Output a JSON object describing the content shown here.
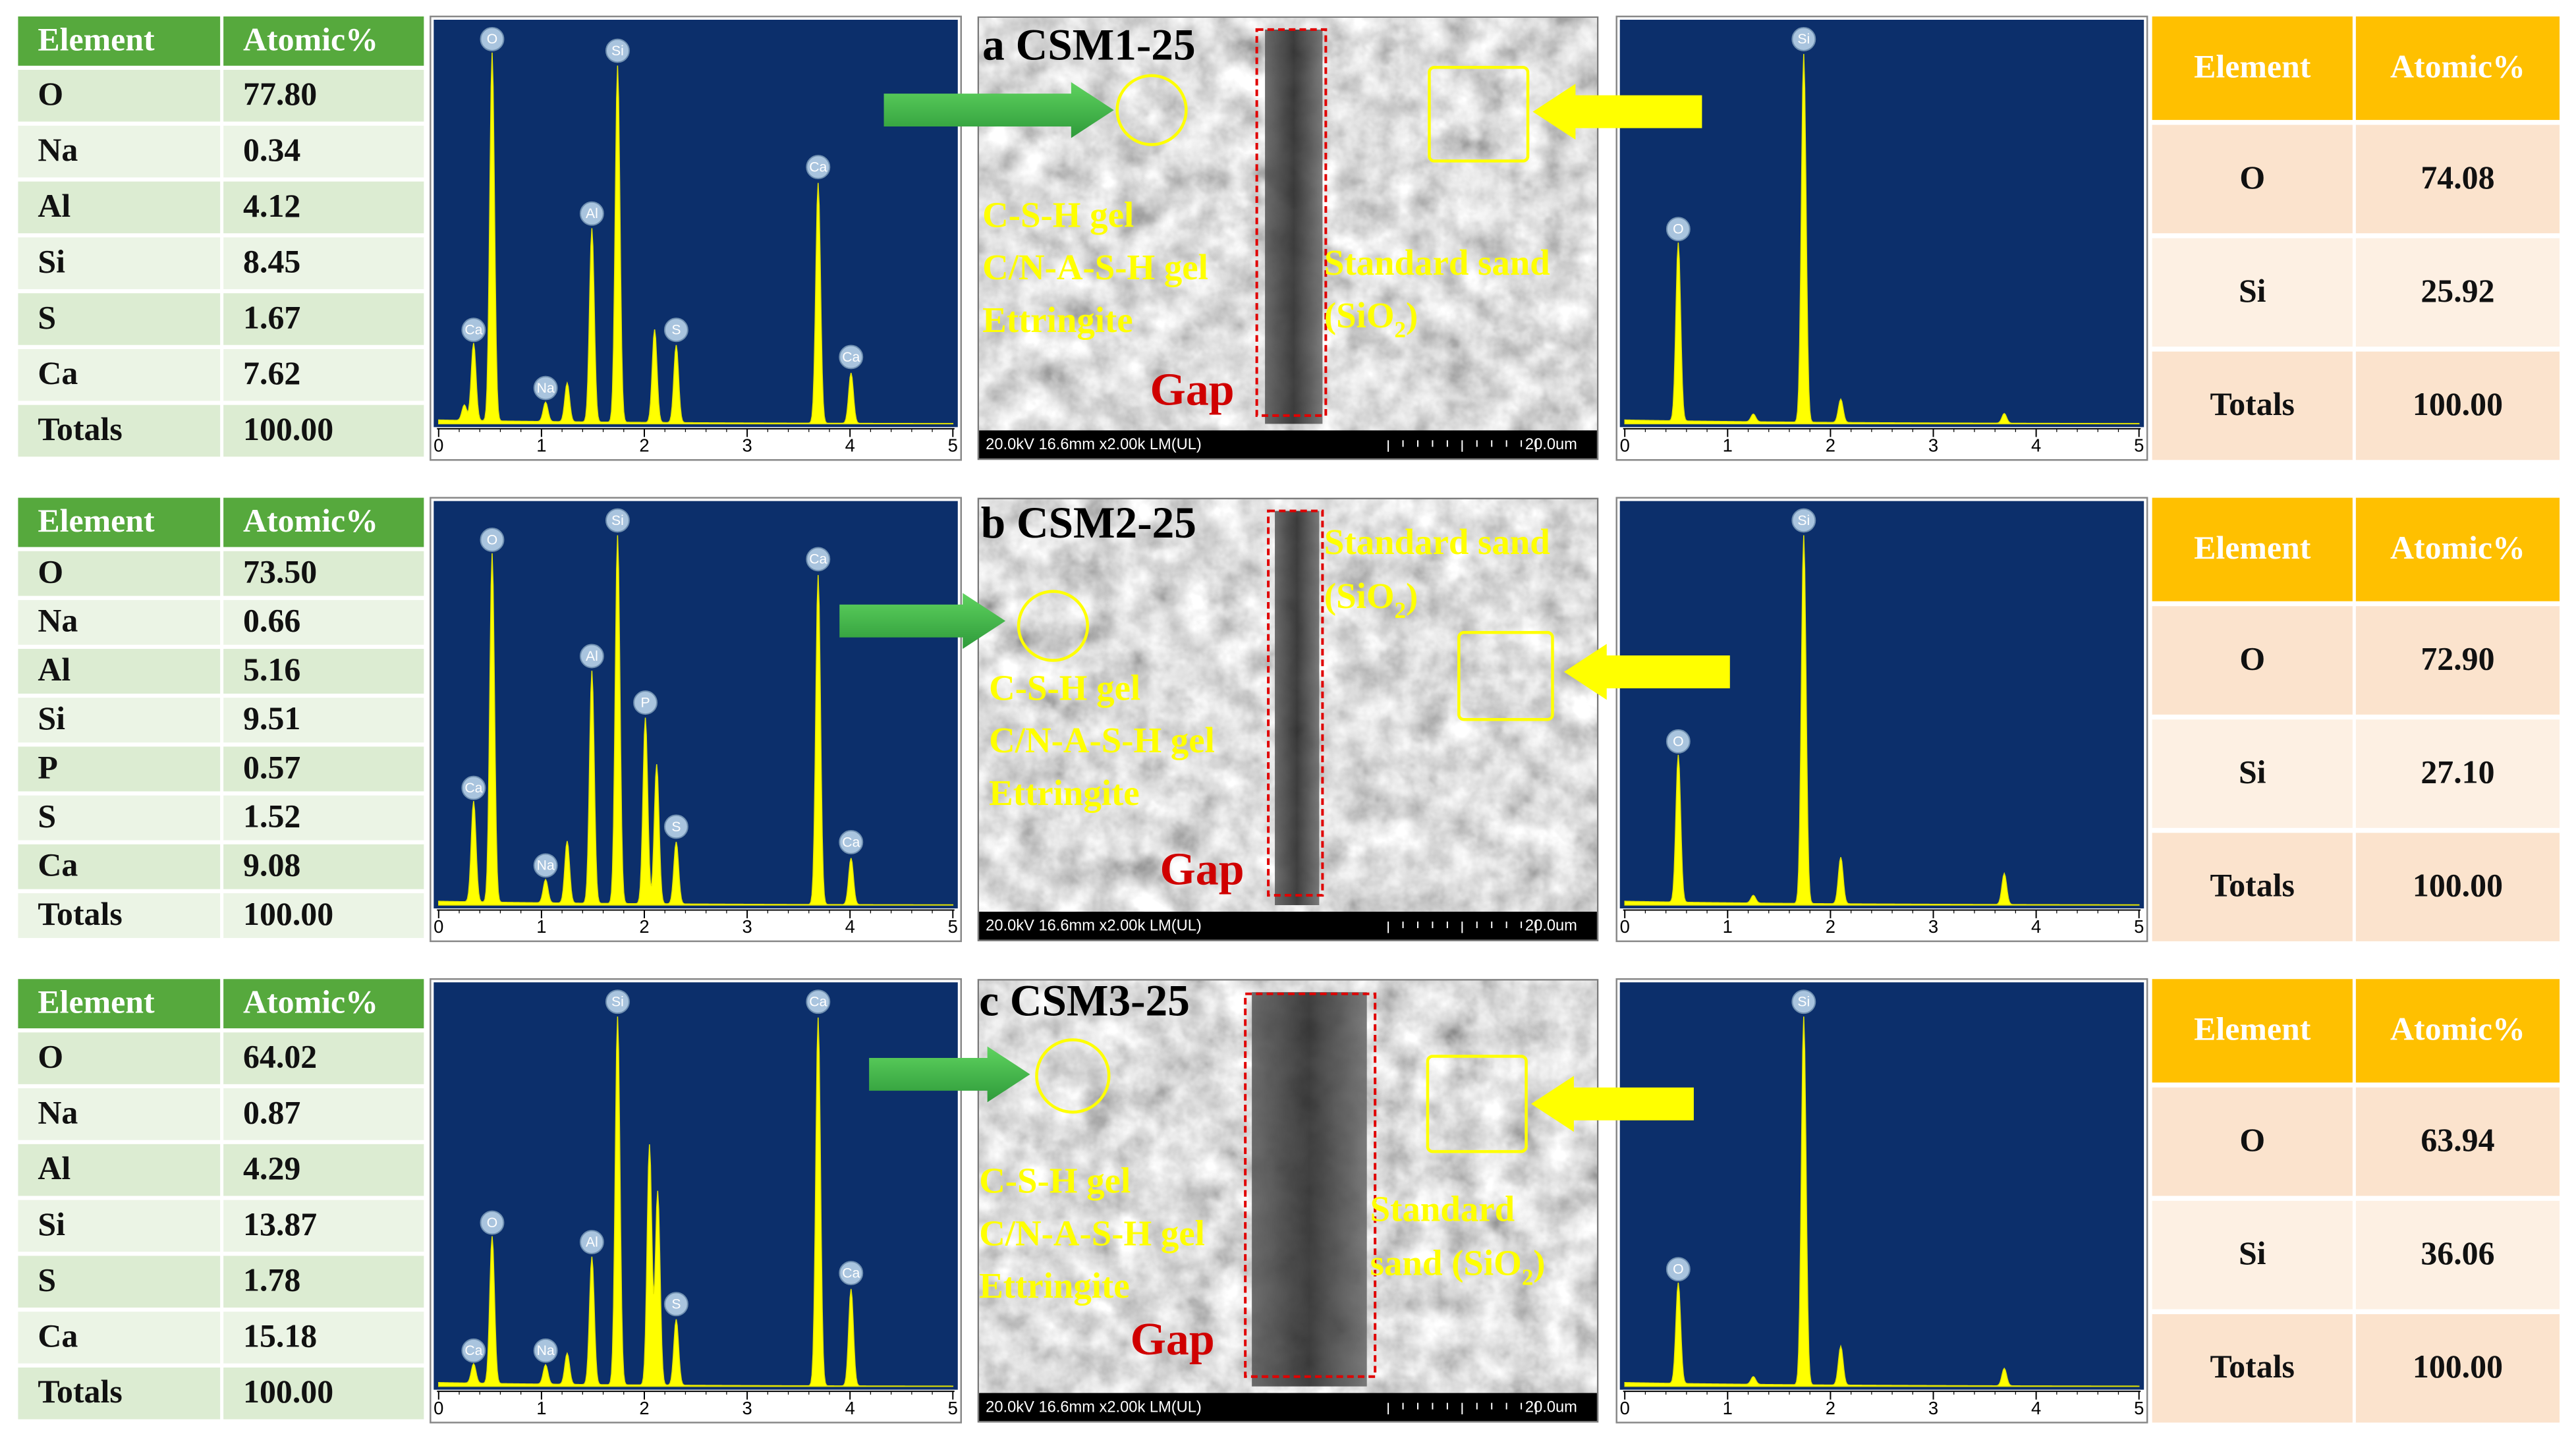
{
  "panels": [
    {
      "label": "a CSM1-25",
      "left_table": {
        "header": [
          "Element",
          "Atomic%"
        ],
        "rows": [
          [
            "O",
            "77.80"
          ],
          [
            "Na",
            "0.34"
          ],
          [
            "Al",
            "4.12"
          ],
          [
            "Si",
            "8.45"
          ],
          [
            "S",
            "1.67"
          ],
          [
            "Ca",
            "7.62"
          ],
          [
            "Totals",
            "100.00"
          ]
        ]
      },
      "left_spectrum": {
        "xticks": [
          0,
          1,
          2,
          3,
          4,
          5
        ],
        "peaks": [
          {
            "label": "Ca",
            "x": 0.34
          },
          {
            "label": "O",
            "x": 0.52
          },
          {
            "label": "Na",
            "x": 1.04
          },
          {
            "label": "Al",
            "x": 1.49
          },
          {
            "label": "Si",
            "x": 1.74
          },
          {
            "label": "S",
            "x": 2.31
          },
          {
            "label": "Ca",
            "x": 3.69
          },
          {
            "label": "Ca",
            "x": 4.01
          }
        ]
      },
      "sem": {
        "phases": [
          "C-S-H gel",
          "C/N-A-S-H gel",
          "Ettringite"
        ],
        "gap": "Gap",
        "sand": [
          [
            "Standard sand"
          ],
          [
            "(SiO",
            "2",
            ")"
          ]
        ],
        "info": "20.0kV 16.6mm x2.00k LM(UL)",
        "scale": "20.0um"
      },
      "right_spectrum": {
        "xticks": [
          0,
          1,
          2,
          3,
          4,
          5
        ],
        "peaks": [
          {
            "label": "O",
            "x": 0.52
          },
          {
            "label": "Si",
            "x": 1.74
          }
        ]
      },
      "right_table": {
        "header": [
          "Element",
          "Atomic%"
        ],
        "rows": [
          [
            "O",
            "74.08"
          ],
          [
            "Si",
            "25.92"
          ],
          [
            "Totals",
            "100.00"
          ]
        ]
      }
    },
    {
      "label": "b CSM2-25",
      "left_table": {
        "header": [
          "Element",
          "Atomic%"
        ],
        "rows": [
          [
            "O",
            "73.50"
          ],
          [
            "Na",
            "0.66"
          ],
          [
            "Al",
            "5.16"
          ],
          [
            "Si",
            "9.51"
          ],
          [
            "P",
            "0.57"
          ],
          [
            "S",
            "1.52"
          ],
          [
            "Ca",
            "9.08"
          ],
          [
            "Totals",
            "100.00"
          ]
        ]
      },
      "left_spectrum": {
        "xticks": [
          0,
          1,
          2,
          3,
          4,
          5
        ],
        "peaks": [
          {
            "label": "Ca",
            "x": 0.34
          },
          {
            "label": "O",
            "x": 0.52
          },
          {
            "label": "Na",
            "x": 1.04
          },
          {
            "label": "Al",
            "x": 1.49
          },
          {
            "label": "Si",
            "x": 1.74
          },
          {
            "label": "P",
            "x": 2.01
          },
          {
            "label": "S",
            "x": 2.31
          },
          {
            "label": "Ca",
            "x": 3.69
          },
          {
            "label": "Ca",
            "x": 4.01
          }
        ]
      },
      "sem": {
        "phases": [
          "C-S-H gel",
          "C/N-A-S-H gel",
          "Ettringite"
        ],
        "gap": "Gap",
        "sand": [
          [
            "Standard sand"
          ],
          [
            "(SiO",
            "2",
            ")"
          ]
        ],
        "info": "20.0kV 16.6mm x2.00k LM(UL)",
        "scale": "20.0um"
      },
      "right_spectrum": {
        "xticks": [
          0,
          1,
          2,
          3,
          4,
          5
        ],
        "peaks": [
          {
            "label": "O",
            "x": 0.52
          },
          {
            "label": "Si",
            "x": 1.74
          }
        ]
      },
      "right_table": {
        "header": [
          "Element",
          "Atomic%"
        ],
        "rows": [
          [
            "O",
            "72.90"
          ],
          [
            "Si",
            "27.10"
          ],
          [
            "Totals",
            "100.00"
          ]
        ]
      }
    },
    {
      "label": "c CSM3-25",
      "left_table": {
        "header": [
          "Element",
          "Atomic%"
        ],
        "rows": [
          [
            "O",
            "64.02"
          ],
          [
            "Na",
            "0.87"
          ],
          [
            "Al",
            "4.29"
          ],
          [
            "Si",
            "13.87"
          ],
          [
            "S",
            "1.78"
          ],
          [
            "Ca",
            "15.18"
          ],
          [
            "Totals",
            "100.00"
          ]
        ]
      },
      "left_spectrum": {
        "xticks": [
          0,
          1,
          2,
          3,
          4,
          5
        ],
        "peaks": [
          {
            "label": "Ca",
            "x": 0.34
          },
          {
            "label": "O",
            "x": 0.52
          },
          {
            "label": "Na",
            "x": 1.04
          },
          {
            "label": "Al",
            "x": 1.49
          },
          {
            "label": "Si",
            "x": 1.74
          },
          {
            "label": "S",
            "x": 2.31
          },
          {
            "label": "Ca",
            "x": 3.69
          },
          {
            "label": "Ca",
            "x": 4.01
          }
        ]
      },
      "sem": {
        "phases": [
          "C-S-H gel",
          "C/N-A-S-H gel",
          "Ettringite"
        ],
        "gap": "Gap",
        "sand": [
          [
            "Standard"
          ],
          [
            "sand (SiO",
            "2",
            ")"
          ]
        ],
        "info": "20.0kV 16.6mm x2.00k LM(UL)",
        "scale": "20.0um"
      },
      "right_spectrum": {
        "xticks": [
          0,
          1,
          2,
          3,
          4,
          5
        ],
        "peaks": [
          {
            "label": "O",
            "x": 0.52
          },
          {
            "label": "Si",
            "x": 1.74
          }
        ]
      },
      "right_table": {
        "header": [
          "Element",
          "Atomic%"
        ],
        "rows": [
          [
            "O",
            "63.94"
          ],
          [
            "Si",
            "36.06"
          ],
          [
            "Totals",
            "100.00"
          ]
        ]
      }
    }
  ]
}
